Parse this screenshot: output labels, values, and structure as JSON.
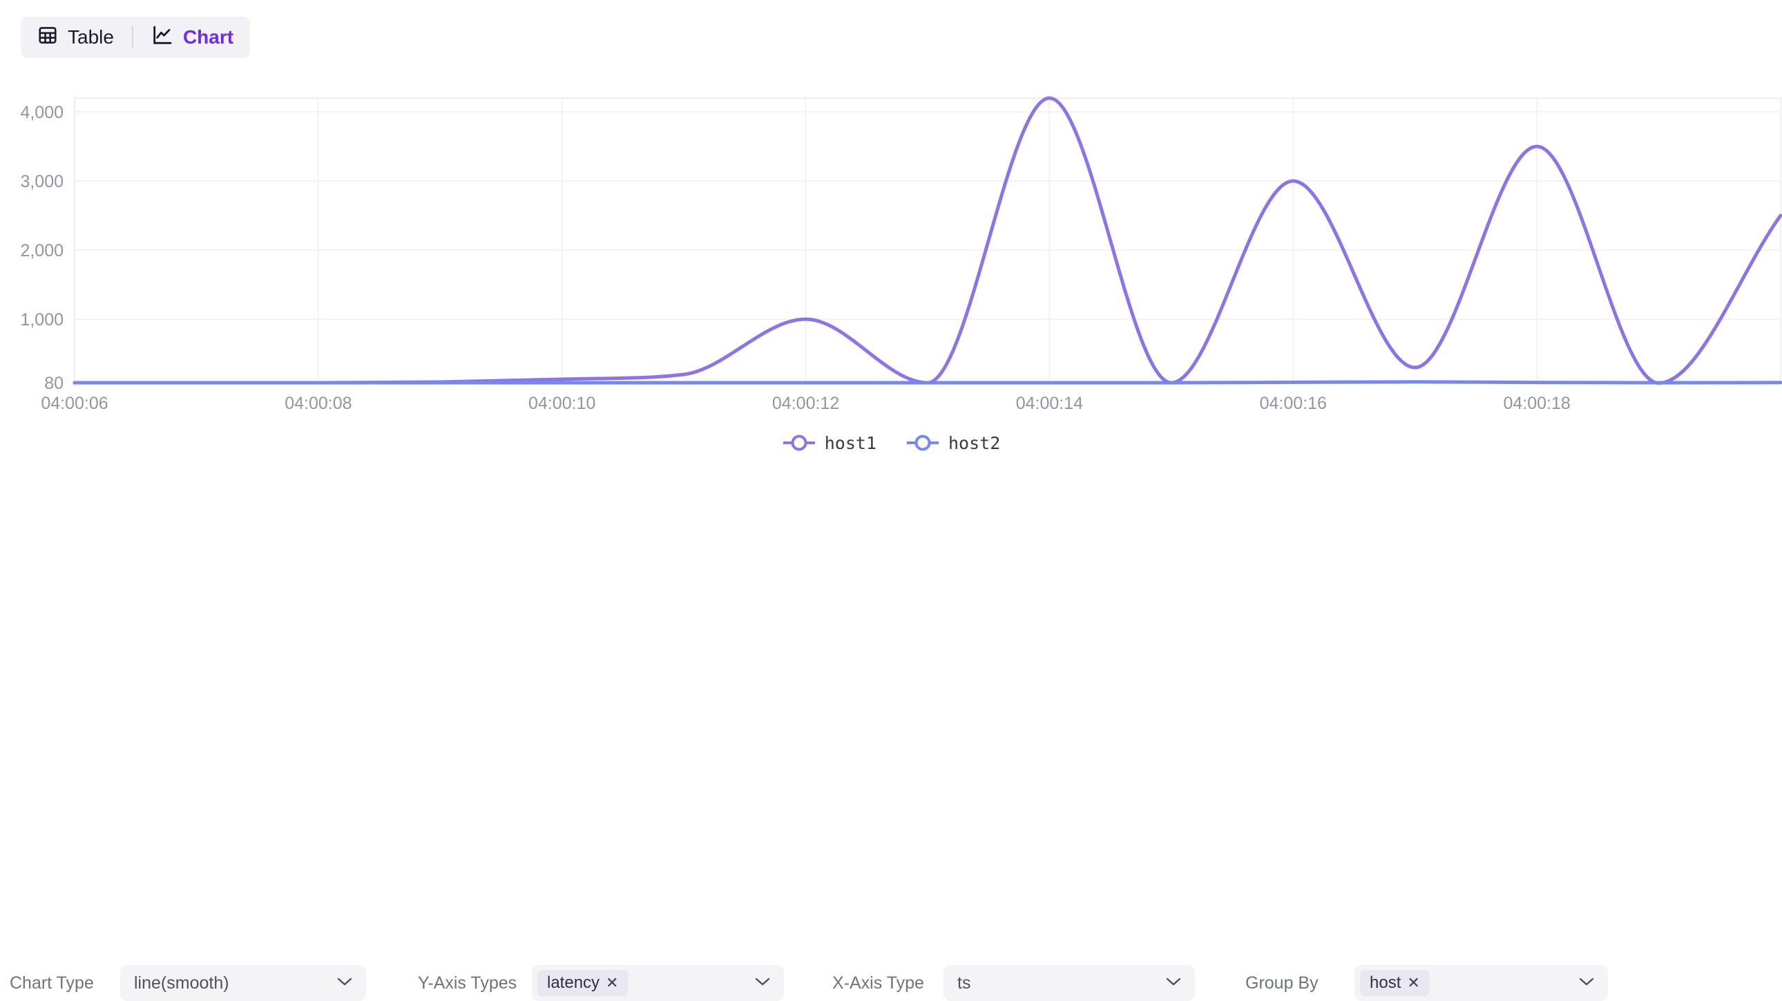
{
  "toggle": {
    "table_label": "Table",
    "chart_label": "Chart",
    "active": "Chart",
    "active_color": "#6C2BF2"
  },
  "chart_data": {
    "type": "line",
    "smooth": true,
    "x": [
      "04:00:06",
      "04:00:07",
      "04:00:08",
      "04:00:09",
      "04:00:10",
      "04:00:11",
      "04:00:12",
      "04:00:13",
      "04:00:14",
      "04:00:15",
      "04:00:16",
      "04:00:17",
      "04:00:18",
      "04:00:19",
      "04:00:20"
    ],
    "x_tick_indices": [
      0,
      2,
      4,
      6,
      8,
      10,
      12
    ],
    "x_tick_labels": [
      "04:00:06",
      "04:00:08",
      "04:00:10",
      "04:00:12",
      "04:00:14",
      "04:00:16",
      "04:00:18"
    ],
    "y_ticks": [
      {
        "value": 80,
        "label": "80"
      },
      {
        "value": 1000,
        "label": "1,000"
      },
      {
        "value": 2000,
        "label": "2,000"
      },
      {
        "value": 3000,
        "label": "3,000"
      },
      {
        "value": 4000,
        "label": "4,000"
      }
    ],
    "ylim": [
      80,
      4200
    ],
    "grid": true,
    "legend_position": "bottom-center",
    "series": [
      {
        "name": "host1",
        "color": "#8C73EA",
        "values": [
          80,
          80,
          80,
          90,
          130,
          200,
          1000,
          80,
          4200,
          80,
          3000,
          300,
          3500,
          75,
          2500
        ]
      },
      {
        "name": "host2",
        "color": "#7587F0",
        "values": [
          80,
          80,
          80,
          80,
          80,
          80,
          80,
          80,
          80,
          80,
          86,
          92,
          84,
          80,
          82
        ]
      }
    ]
  },
  "controls": [
    {
      "label": "Chart Type",
      "type": "select",
      "value": "line(smooth)"
    },
    {
      "label": "Y-Axis Types",
      "type": "multiselect",
      "tags": [
        "latency"
      ]
    },
    {
      "label": "X-Axis Type",
      "type": "select",
      "value": "ts"
    },
    {
      "label": "Group By",
      "type": "multiselect",
      "tags": [
        "host"
      ]
    }
  ],
  "icons": {
    "close": "✕"
  },
  "colors": {
    "grid_line": "#efeff3",
    "plot_border": "#e8e8ee",
    "axis_line": "#e2e2e9",
    "tick_text": "#8f95a3",
    "toggle_bg": "#f2f1f6",
    "control_bg": "#f4f4f7",
    "tag_bg": "#e9e7ef"
  }
}
